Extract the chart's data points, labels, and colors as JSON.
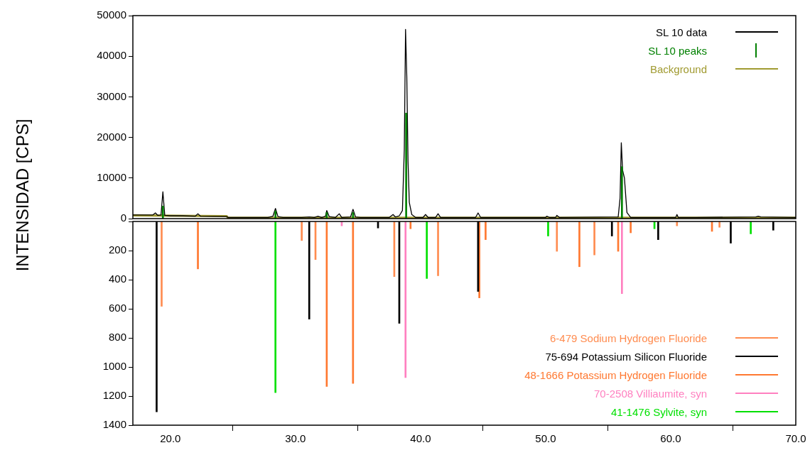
{
  "chart_data": [
    {
      "type": "line",
      "ylabel": "INTENSIDAD [CPS]",
      "xlim": [
        17,
        70
      ],
      "ylim": [
        0,
        50000
      ],
      "yticks": [
        0,
        10000,
        20000,
        30000,
        40000,
        50000
      ],
      "tick_labels": "y",
      "grid": false,
      "legend": "top right",
      "marker": "none",
      "series": [
        {
          "name": "SL 10 data",
          "color": "#000000",
          "type": "line",
          "x": [
            17,
            17.6,
            18.6,
            18.8,
            19.0,
            19.25,
            19.4,
            19.55,
            20,
            21,
            22.0,
            22.2,
            22.4,
            24.5,
            24.6,
            27.8,
            28.2,
            28.4,
            28.6,
            29,
            30.5,
            31.1,
            31.5,
            31.8,
            32.1,
            32.4,
            32.5,
            32.7,
            33.2,
            33.5,
            33.7,
            34.4,
            34.6,
            34.8,
            35.2,
            37.5,
            37.8,
            38.0,
            38.3,
            38.55,
            38.7,
            38.8,
            38.9,
            39.0,
            39.1,
            39.3,
            39.6,
            40.2,
            40.4,
            40.6,
            41.2,
            41.4,
            41.6,
            44.4,
            44.6,
            44.8,
            48,
            50.0,
            50.1,
            50.3,
            50.8,
            50.9,
            51.1,
            55.8,
            55.95,
            56.05,
            56.15,
            56.3,
            56.5,
            56.8,
            60.4,
            60.5,
            60.6,
            62,
            66.8,
            67,
            67.2,
            70
          ],
          "values": [
            900,
            900,
            900,
            1400,
            800,
            900,
            6600,
            800,
            700,
            700,
            600,
            1200,
            600,
            500,
            300,
            300,
            600,
            2500,
            500,
            300,
            300,
            400,
            300,
            600,
            300,
            600,
            2000,
            500,
            300,
            1200,
            300,
            400,
            2300,
            400,
            300,
            300,
            1000,
            400,
            700,
            2000,
            17000,
            46600,
            35000,
            14000,
            4000,
            1000,
            300,
            300,
            1000,
            300,
            300,
            1200,
            300,
            300,
            1400,
            300,
            300,
            300,
            600,
            300,
            300,
            800,
            300,
            400,
            5000,
            18700,
            12000,
            10000,
            1500,
            300,
            300,
            1000,
            300,
            300,
            400,
            600,
            400,
            300
          ]
        },
        {
          "name": "SL 10 peaks",
          "color": "#008000",
          "type": "bar",
          "x": [
            19.4,
            28.4,
            32.5,
            34.6,
            38.85,
            56.1
          ],
          "values": [
            3100,
            1900,
            1500,
            1500,
            26000,
            12800
          ]
        },
        {
          "name": "Background",
          "color": "#a09a30",
          "type": "line",
          "x": [
            17,
            24.5,
            24.6,
            70
          ],
          "values": [
            800,
            600,
            200,
            200
          ]
        }
      ]
    },
    {
      "type": "bar",
      "xlim": [
        17,
        70
      ],
      "xticks": [
        {
          "value": 20,
          "label": "20.0"
        },
        {
          "value": 30,
          "label": "30.0"
        },
        {
          "value": 40,
          "label": "40.0"
        },
        {
          "value": 50,
          "label": "50.0"
        },
        {
          "value": 60,
          "label": "60.0"
        },
        {
          "value": 70,
          "label": "70.0"
        }
      ],
      "ylim": [
        1400,
        0
      ],
      "yticks": [
        {
          "value": 0,
          "label": null
        },
        200,
        400,
        600,
        800,
        1000,
        1200,
        1400
      ],
      "grid": false,
      "legend": "bottom right",
      "series": [
        {
          "name": "6-479 Sodium Hydrogen Fluoride",
          "color": "#ff8c50",
          "x": [
            19.3,
            30.5,
            31.6,
            37.9,
            41.4,
            50.9,
            53.9,
            60.5,
            63.9
          ],
          "values": [
            583,
            131,
            262,
            379,
            373,
            205,
            230,
            30,
            40
          ]
        },
        {
          "name": "75-694 Potassium Silicon Fluoride",
          "color": "#000000",
          "x": [
            18.9,
            31.1,
            36.6,
            38.3,
            44.6,
            55.3,
            59.0,
            64.8,
            68.2
          ],
          "values": [
            1308,
            671,
            45,
            700,
            481,
            100,
            125,
            149,
            60
          ]
        },
        {
          "name": "48-1666 Potassium Hydrogen Fluoride",
          "color": "#ff7830",
          "x": [
            22.2,
            32.5,
            34.6,
            39.2,
            44.7,
            45.2,
            52.7,
            55.8,
            56.8,
            63.3
          ],
          "values": [
            326,
            1134,
            1113,
            50,
            525,
            125,
            311,
            205,
            78,
            68
          ]
        },
        {
          "name": "70-2508 Villiaumite, syn",
          "color": "#ff80c0",
          "x": [
            33.7,
            38.8,
            56.1
          ],
          "values": [
            30,
            1073,
            496
          ]
        },
        {
          "name": "41-1476 Sylvite, syn",
          "color": "#00e000",
          "x": [
            28.4,
            40.5,
            50.2,
            58.7,
            66.4
          ],
          "values": [
            1176,
            392,
            100,
            50,
            85
          ]
        }
      ]
    }
  ]
}
